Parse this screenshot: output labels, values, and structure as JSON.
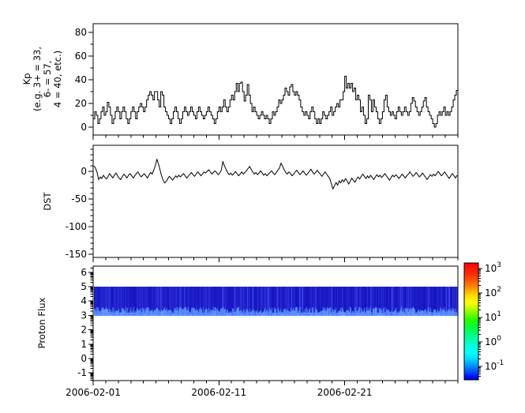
{
  "figure": {
    "background": "#ffffff",
    "axis_color": "#000000",
    "line_color": "#000000"
  },
  "xaxis": {
    "major_labels": [
      "2006-02-01",
      "2006-02-11",
      "2006-02-21"
    ],
    "major_day_offsets": [
      0,
      10,
      20
    ],
    "minor_interval_days": 1,
    "total_days": 29,
    "start_date": "2006-02-01"
  },
  "chart_data": [
    {
      "name": "kp",
      "type": "line",
      "line_style": "step",
      "ylabel_text": "Kp\n(e.g. 3+ = 33,\n6- = 57,\n4 = 40, etc.)",
      "ylabel_lines": [
        "Kp",
        "(e.g. 3+ = 33,",
        "6- = 57,",
        "4 = 40, etc.)"
      ],
      "ytick_labels": [
        "0",
        "20",
        "40",
        "60",
        "80"
      ],
      "yticks": [
        0,
        20,
        40,
        60,
        80
      ],
      "ylim": [
        -7,
        87
      ],
      "samples_per_day": 8,
      "values": [
        7,
        13,
        10,
        3,
        7,
        13,
        17,
        10,
        13,
        21,
        17,
        10,
        3,
        7,
        13,
        17,
        13,
        7,
        13,
        17,
        13,
        7,
        3,
        7,
        13,
        17,
        13,
        7,
        13,
        17,
        20,
        17,
        13,
        17,
        23,
        27,
        30,
        27,
        23,
        30,
        30,
        23,
        17,
        30,
        27,
        17,
        13,
        10,
        7,
        3,
        7,
        13,
        17,
        13,
        7,
        3,
        7,
        13,
        17,
        13,
        10,
        13,
        17,
        13,
        10,
        7,
        13,
        17,
        13,
        10,
        7,
        10,
        13,
        17,
        13,
        10,
        7,
        3,
        7,
        13,
        17,
        13,
        17,
        23,
        17,
        13,
        17,
        23,
        27,
        23,
        30,
        37,
        30,
        37,
        38,
        30,
        22,
        27,
        36,
        27,
        20,
        13,
        17,
        13,
        10,
        7,
        10,
        13,
        10,
        7,
        10,
        7,
        3,
        7,
        13,
        10,
        13,
        17,
        23,
        20,
        23,
        27,
        33,
        30,
        27,
        34,
        36,
        30,
        27,
        30,
        27,
        23,
        17,
        13,
        10,
        13,
        10,
        7,
        13,
        17,
        13,
        7,
        3,
        7,
        3,
        7,
        13,
        10,
        7,
        10,
        13,
        17,
        10,
        13,
        17,
        20,
        17,
        23,
        23,
        30,
        43,
        33,
        37,
        33,
        37,
        30,
        33,
        23,
        27,
        23,
        13,
        17,
        10,
        3,
        7,
        27,
        23,
        13,
        23,
        17,
        13,
        7,
        3,
        7,
        13,
        23,
        27,
        17,
        13,
        10,
        13,
        10,
        7,
        13,
        17,
        13,
        10,
        13,
        17,
        13,
        10,
        13,
        20,
        25,
        22,
        17,
        13,
        10,
        13,
        17,
        22,
        25,
        17,
        13,
        10,
        7,
        3,
        0,
        3,
        10,
        13,
        10,
        13,
        17,
        10,
        13,
        10,
        13,
        17,
        23,
        27,
        31
      ]
    },
    {
      "name": "dst",
      "type": "line",
      "ylabel": "DST",
      "ytick_labels": [
        "0",
        "-50",
        "-100",
        "-150"
      ],
      "yticks": [
        0,
        -50,
        -100,
        -150
      ],
      "ylim": [
        47,
        -156
      ],
      "samples_per_day": 8,
      "values": [
        10,
        6,
        -2,
        -15,
        -10,
        -13,
        -7,
        -11,
        -14,
        -9,
        -4,
        -8,
        -12,
        -7,
        -3,
        -8,
        -12,
        -15,
        -10,
        -5,
        -8,
        -12,
        -7,
        -4,
        -8,
        -12,
        -8,
        -4,
        -1,
        -6,
        -10,
        -7,
        -4,
        -8,
        -12,
        -7,
        -2,
        -5,
        2,
        10,
        22,
        14,
        3,
        -8,
        -16,
        -21,
        -18,
        -13,
        -9,
        -12,
        -16,
        -12,
        -8,
        -11,
        -7,
        -10,
        -7,
        -4,
        -8,
        -12,
        -9,
        -5,
        -2,
        -6,
        -9,
        -5,
        -1,
        -4,
        -8,
        -5,
        -1,
        -3,
        0,
        3,
        -1,
        -5,
        -2,
        1,
        -2,
        -6,
        -3,
        2,
        18,
        10,
        4,
        -2,
        -6,
        -3,
        -7,
        -4,
        0,
        -4,
        -8,
        -5,
        -1,
        -5,
        -2,
        1,
        5,
        9,
        4,
        -1,
        -5,
        -2,
        -6,
        -3,
        1,
        -3,
        -7,
        -4,
        -8,
        -5,
        -2,
        1,
        -3,
        -6,
        -2,
        2,
        6,
        15,
        9,
        3,
        -2,
        -5,
        -1,
        -4,
        -8,
        -5,
        -1,
        2,
        -2,
        -6,
        -3,
        1,
        -3,
        -7,
        -4,
        0,
        4,
        -1,
        -5,
        -2,
        2,
        -2,
        -5,
        -9,
        -5,
        -1,
        -5,
        -9,
        -13,
        -22,
        -32,
        -26,
        -20,
        -25,
        -17,
        -21,
        -15,
        -19,
        -13,
        -17,
        -23,
        -18,
        -12,
        -16,
        -20,
        -14,
        -10,
        -14,
        -9,
        -5,
        -9,
        -13,
        -8,
        -12,
        -7,
        -11,
        -15,
        -10,
        -6,
        -10,
        -7,
        -11,
        -8,
        -4,
        -8,
        -12,
        -16,
        -11,
        -7,
        -10,
        -6,
        -9,
        -13,
        -9,
        -5,
        -8,
        -12,
        -8,
        -5,
        -1,
        -5,
        -9,
        -6,
        -2,
        -6,
        -10,
        -7,
        -3,
        -7,
        -11,
        -15,
        -10,
        -6,
        -9,
        -5,
        -8,
        -4,
        0,
        -4,
        -8,
        -5,
        -1,
        -5,
        -9,
        -13,
        -8,
        -4,
        -8,
        -12,
        -7
      ]
    },
    {
      "name": "proton_flux",
      "type": "heatmap",
      "ylabel": "Proton Flux",
      "ytick_labels": [
        "-1",
        "0",
        "1",
        "2",
        "3",
        "4",
        "5",
        "6"
      ],
      "yticks": [
        -1,
        0,
        1,
        2,
        3,
        4,
        5,
        6
      ],
      "ylim": [
        -1.55,
        6.45
      ],
      "yscale_minor": "log-decade",
      "band": {
        "y_min": 3,
        "y_max": 5,
        "description": "continuous blue vertical-striped band spanning full time range; flux mostly 0.05-0.5 (dark-to-mid blue on jet scale) with brighter light-blue streaks near y=3",
        "base_color": "#0000b4",
        "bright_color": "#4f8cff",
        "noise_seed": 7
      },
      "colorbar": {
        "scale": "log",
        "colormap": "jet",
        "tick_labels": [
          "10^3",
          "10^2",
          "10^1",
          "10^0",
          "10^-1"
        ]
      }
    }
  ]
}
